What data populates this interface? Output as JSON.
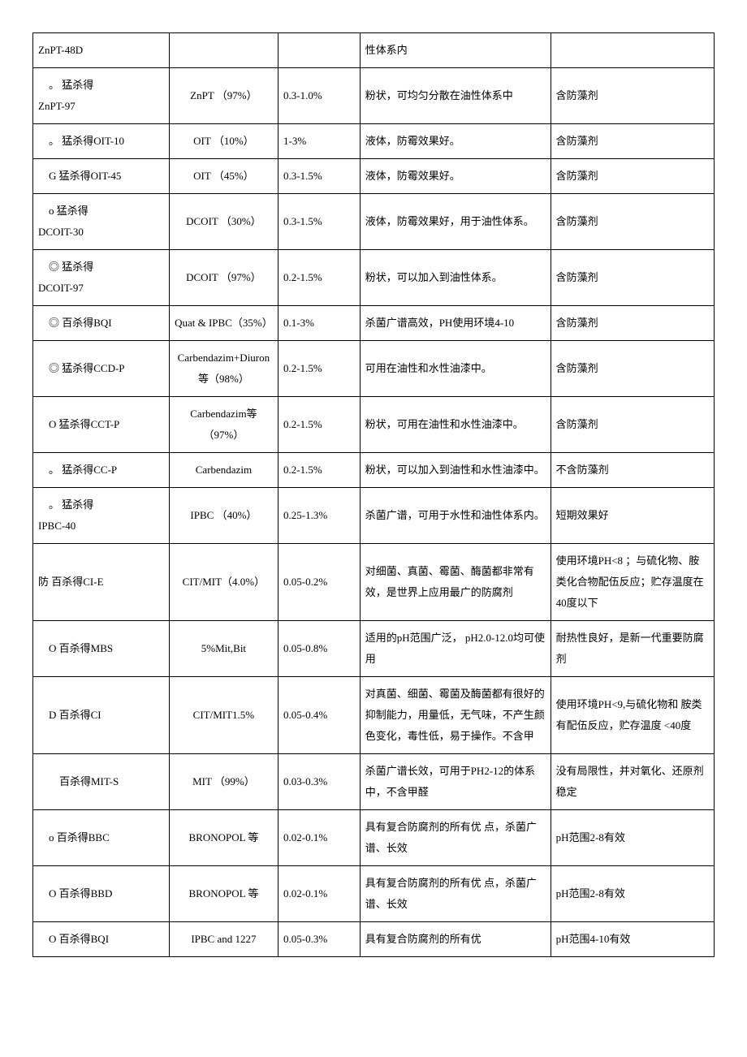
{
  "table": {
    "columns": [
      "name",
      "ingredient",
      "dosage",
      "description",
      "note"
    ],
    "col_align": [
      "left",
      "center",
      "left",
      "left",
      "left"
    ],
    "rows": [
      [
        "ZnPT-48D",
        "",
        "",
        "性体系内",
        ""
      ],
      [
        "　。 猛杀得\nZnPT-97",
        "ZnPT （97%）",
        "0.3-1.0%",
        "粉状，可均匀分散在油性体系中",
        "含防藻剂"
      ],
      [
        "　。 猛杀得OIT-10",
        "OIT （10%）",
        "  1-3%",
        "液体，防霉效果好。",
        "含防藻剂"
      ],
      [
        "　G 猛杀得OIT-45",
        "OIT （45%）",
        "0.3-1.5%",
        "液体，防霉效果好。",
        "含防藻剂"
      ],
      [
        "　o 猛杀得\nDCOIT-30",
        "DCOIT （30%）",
        "0.3-1.5%",
        "液体，防霉效果好，用于油性体系。",
        "含防藻剂"
      ],
      [
        "　◎ 猛杀得\nDCOIT-97",
        "DCOIT （97%）",
        "0.2-1.5%",
        "粉状，可以加入到油性体系。",
        "含防藻剂"
      ],
      [
        "　◎ 百杀得BQI",
        "Quat & IPBC（35%）",
        "  0.1-3%",
        "杀菌广谱高效，PH使用环境4-10",
        "含防藻剂"
      ],
      [
        "　◎ 猛杀得CCD-P",
        "Carbendazim+Diuron 等（98%）",
        "0.2-1.5%",
        "可用在油性和水性油漆中。",
        "含防藻剂"
      ],
      [
        "　O 猛杀得CCT-P",
        "Carbendazim等（97%）",
        "0.2-1.5%",
        "粉状，可用在油性和水性油漆中。",
        "含防藻剂"
      ],
      [
        "　。 猛杀得CC-P",
        "Carbendazim",
        "0.2-1.5%",
        "粉状，可以加入到油性和水性油漆中。",
        "不含防藻剂"
      ],
      [
        "　。 猛杀得\nIPBC-40",
        "IPBC （40%）",
        "0.25-1.3%",
        "杀菌广谱，可用于水性和油性体系内。",
        "短期效果好"
      ],
      [
        "防 百杀得CI-E",
        "CIT/MIT（4.0%）",
        "0.05-0.2%",
        "对细菌、真菌、霉菌、酶菌都非常有效，是世界上应用最广的防腐剂",
        "使用环境PH<8 ；与硫化物、胺类化合物配伍反应；贮存温度在40度以下"
      ],
      [
        "　O 百杀得MBS",
        "5%Mit,Bit",
        "0.05-0.8%",
        "适用的pH范围广泛，  pH2.0-12.0均可使用",
        "耐热性良好，是新一代重要防腐剂"
      ],
      [
        "　D 百杀得CI",
        "CIT/MIT1.5%",
        "0.05-0.4%",
        "对真菌、细菌、霉菌及酶菌都有很好的抑制能力，用量低，无气味，不产生颜色变化，毒性低，易于操作。不含甲",
        "使用环境PH<9,与硫化物和 胺类有配伍反应，贮存温度 <40度"
      ],
      [
        "　　百杀得MIT-S",
        "MIT （99%）",
        "0.03-0.3%",
        "杀菌广谱长效，可用于PH2-12的体系中，不含甲醛",
        "没有局限性，并对氧化、还原剂稳定"
      ],
      [
        "　o 百杀得BBC",
        "BRONOPOL 等",
        "0.02-0.1%",
        "具有复合防腐剂的所有优 点，杀菌广谱、长效",
        "pH范围2-8有效"
      ],
      [
        "　O 百杀得BBD",
        "BRONOPOL 等",
        "0.02-0.1%",
        "具有复合防腐剂的所有优 点，杀菌广谱、长效",
        "pH范围2-8有效"
      ],
      [
        "　O 百杀得BQI",
        "IPBC and 1227",
        "0.05-0.3%",
        "具有复合防腐剂的所有优",
        "pH范围4-10有效"
      ]
    ]
  }
}
